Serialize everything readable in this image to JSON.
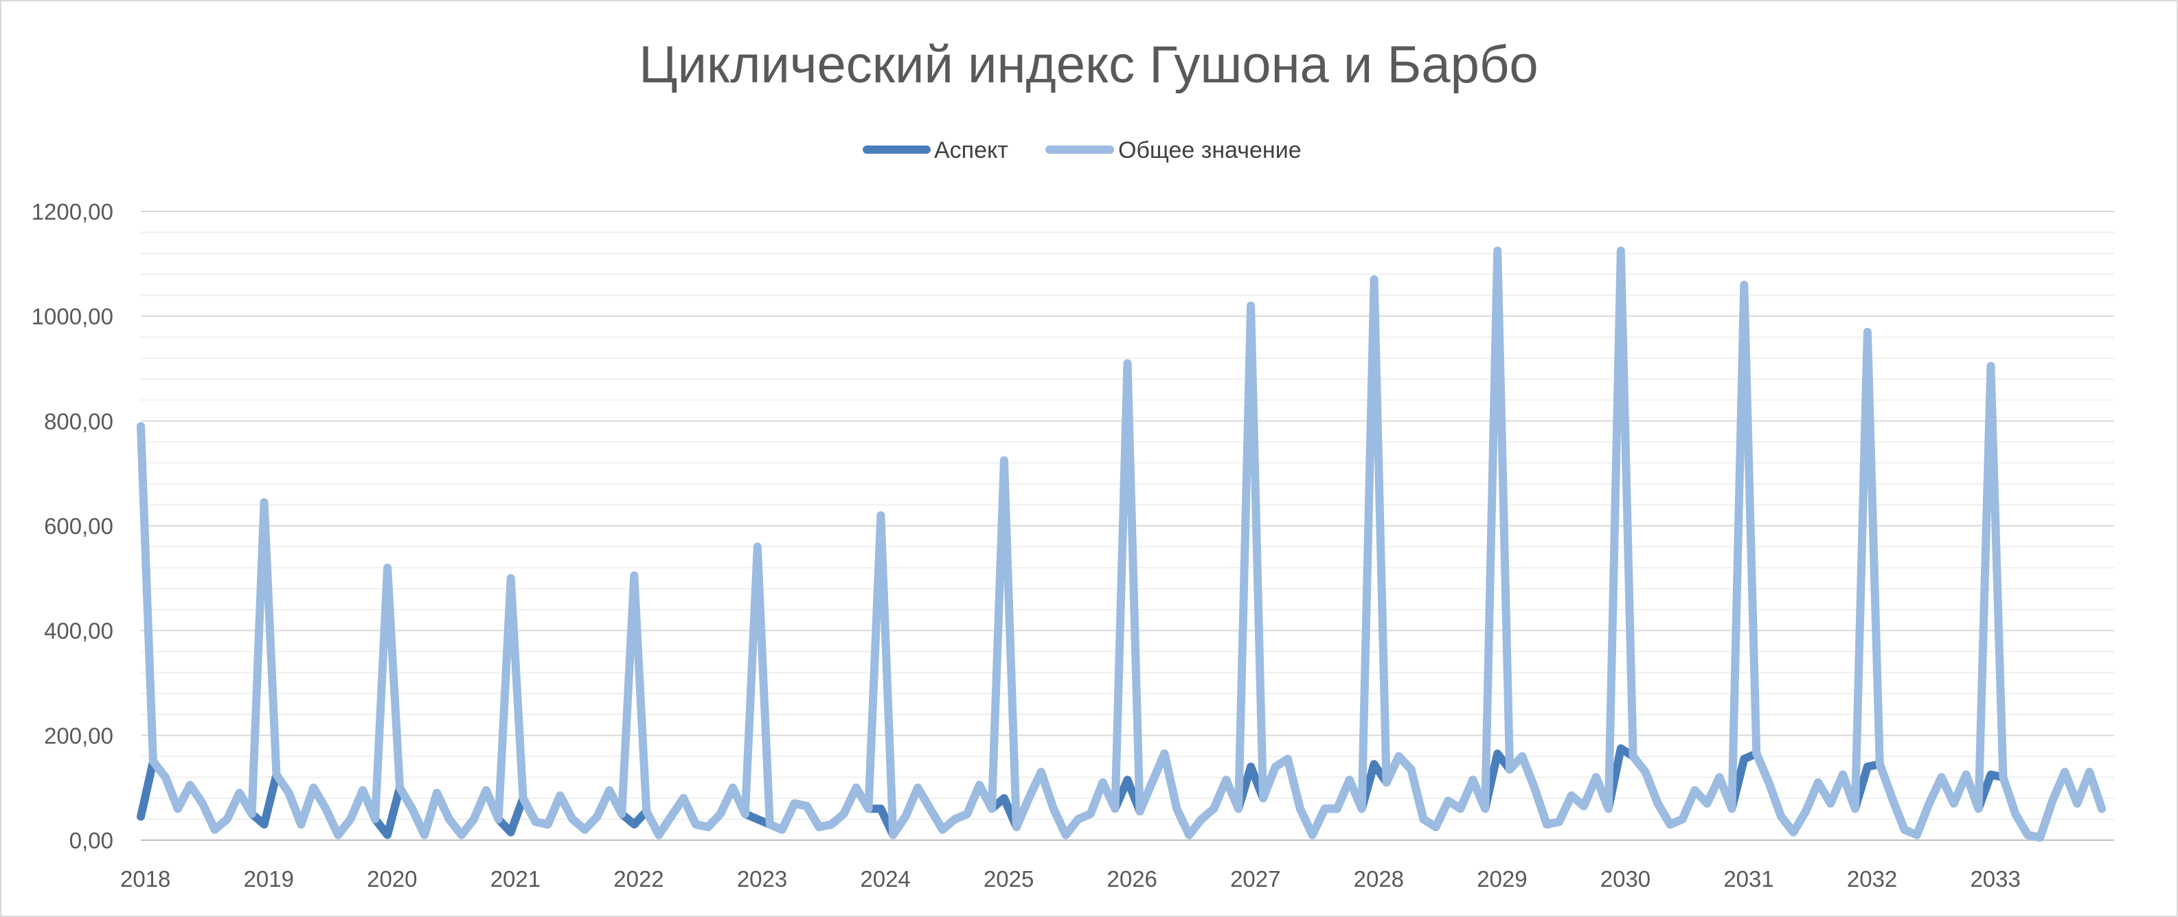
{
  "chart_data": {
    "type": "line",
    "title": "Циклический индекс Гушона и Барбо",
    "xlabel": "",
    "ylabel": "",
    "ylim": [
      0,
      1200
    ],
    "y_ticks": [
      "0,00",
      "200,00",
      "400,00",
      "600,00",
      "800,00",
      "1000,00",
      "1200,00"
    ],
    "x_ticks": [
      "2018",
      "2019",
      "2020",
      "2021",
      "2022",
      "2023",
      "2024",
      "2025",
      "2026",
      "2027",
      "2028",
      "2029",
      "2030",
      "2031",
      "2032",
      "2033"
    ],
    "x_start_year": 2018,
    "x_end_year": 2034,
    "points_per_year": 10,
    "grid": true,
    "legend_position": "top",
    "series": [
      {
        "name": "Аспект",
        "color": "#4a7ebb",
        "values": [
          45,
          150,
          120,
          60,
          105,
          70,
          20,
          40,
          90,
          50,
          30,
          125,
          90,
          30,
          100,
          60,
          10,
          40,
          95,
          40,
          10,
          100,
          60,
          10,
          90,
          40,
          10,
          40,
          95,
          40,
          15,
          80,
          35,
          30,
          85,
          40,
          20,
          45,
          95,
          50,
          30,
          55,
          10,
          45,
          80,
          30,
          25,
          50,
          100,
          50,
          40,
          30,
          20,
          70,
          65,
          25,
          30,
          50,
          100,
          60,
          60,
          10,
          45,
          100,
          60,
          20,
          40,
          50,
          105,
          60,
          80,
          25,
          80,
          130,
          60,
          10,
          40,
          50,
          110,
          60,
          115,
          55,
          110,
          165,
          60,
          10,
          40,
          60,
          115,
          60,
          140,
          80,
          140,
          155,
          60,
          10,
          60,
          60,
          115,
          60,
          145,
          110,
          160,
          135,
          40,
          25,
          75,
          60,
          115,
          60,
          165,
          135,
          160,
          100,
          30,
          35,
          85,
          65,
          120,
          60,
          175,
          160,
          130,
          70,
          30,
          40,
          95,
          70,
          120,
          60,
          155,
          165,
          110,
          45,
          15,
          55,
          110,
          70,
          125,
          60,
          140,
          145,
          80,
          20,
          10,
          70,
          120,
          70,
          125,
          60,
          125,
          120,
          50,
          10,
          5,
          75,
          130,
          70,
          130,
          60
        ]
      },
      {
        "name": "Общее значение",
        "color": "#9bbbe1",
        "values": [
          790,
          150,
          120,
          60,
          105,
          70,
          20,
          40,
          90,
          50,
          645,
          125,
          90,
          30,
          100,
          60,
          10,
          40,
          95,
          40,
          520,
          100,
          60,
          10,
          90,
          40,
          10,
          40,
          95,
          40,
          500,
          80,
          35,
          30,
          85,
          40,
          20,
          45,
          95,
          50,
          505,
          55,
          10,
          45,
          80,
          30,
          25,
          50,
          100,
          50,
          560,
          30,
          20,
          70,
          65,
          25,
          30,
          50,
          100,
          60,
          620,
          10,
          45,
          100,
          60,
          20,
          40,
          50,
          105,
          60,
          725,
          25,
          80,
          130,
          60,
          10,
          40,
          50,
          110,
          60,
          910,
          55,
          110,
          165,
          60,
          10,
          40,
          60,
          115,
          60,
          1020,
          80,
          140,
          155,
          60,
          10,
          60,
          60,
          115,
          60,
          1070,
          110,
          160,
          135,
          40,
          25,
          75,
          60,
          115,
          60,
          1125,
          135,
          160,
          100,
          30,
          35,
          85,
          65,
          120,
          60,
          1125,
          160,
          130,
          70,
          30,
          40,
          95,
          70,
          120,
          60,
          1060,
          165,
          110,
          45,
          15,
          55,
          110,
          70,
          125,
          60,
          970,
          145,
          80,
          20,
          10,
          70,
          120,
          70,
          125,
          60,
          905,
          120,
          50,
          10,
          5,
          75,
          130,
          70,
          130,
          60
        ]
      }
    ]
  }
}
